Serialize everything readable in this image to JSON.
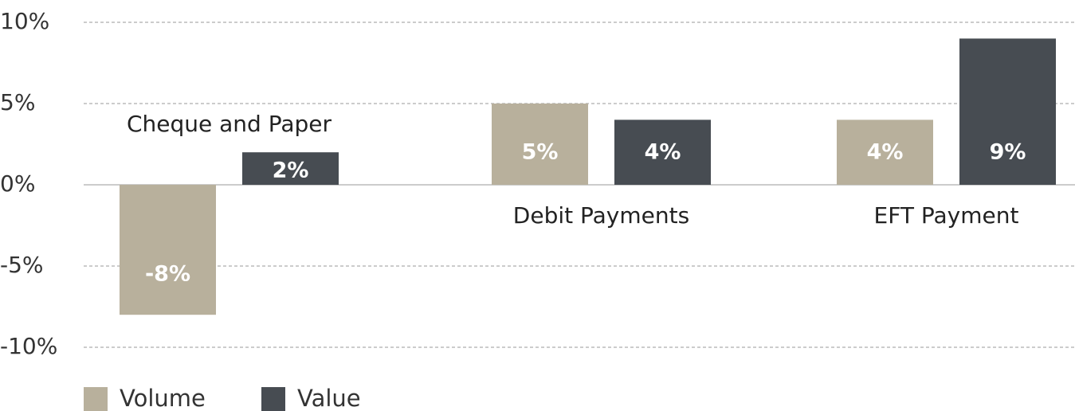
{
  "chart_data": {
    "type": "bar",
    "categories": [
      "Cheque and Paper",
      "Debit Payments",
      "EFT Payment"
    ],
    "series": [
      {
        "name": "Volume",
        "color": "#b8b09c",
        "values": [
          -8,
          5,
          4
        ],
        "value_labels": [
          "-8%",
          "5%",
          "4%"
        ]
      },
      {
        "name": "Value",
        "color": "#474c52",
        "values": [
          2,
          4,
          9
        ],
        "value_labels": [
          "2%",
          "4%",
          "9%"
        ]
      }
    ],
    "ylim": [
      -10,
      10
    ],
    "yticks": [
      {
        "value": -10,
        "label": "-10%"
      },
      {
        "value": -5,
        "label": "-5%"
      },
      {
        "value": 0,
        "label": "0%"
      },
      {
        "value": 5,
        "label": "5%"
      },
      {
        "value": 10,
        "label": "10%"
      }
    ],
    "grid": true,
    "legend": "bottom-left"
  }
}
